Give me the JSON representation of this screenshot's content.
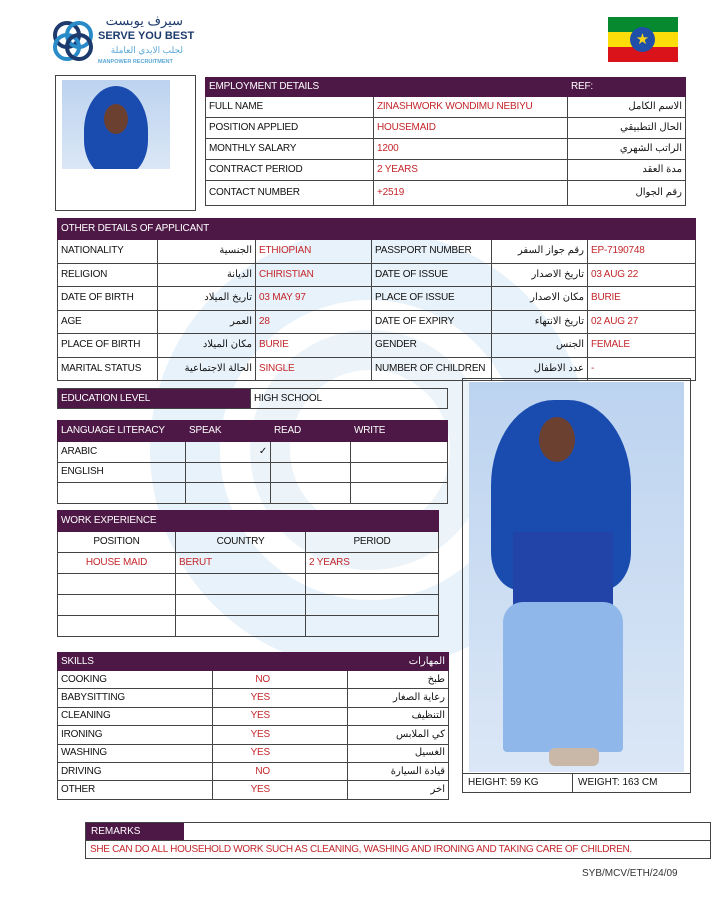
{
  "header": {
    "logo_arabic": "سيرف يوبست",
    "logo_name": "SERVE YOU BEST",
    "logo_arabic_sub": "لجلب الايدي العاملة",
    "logo_sub": "MANPOWER RECRUITMENT",
    "flag_colors": [
      "#078930",
      "#fcdd09",
      "#da121a"
    ],
    "flag_icon": "star-emblem-icon"
  },
  "employment": {
    "title": "EMPLOYMENT DETAILS",
    "ref_label": "REF:",
    "rows": [
      {
        "label": "FULL NAME",
        "value": "ZINASHWORK WONDIMU NEBIYU",
        "arabic": "الاسم الكامل"
      },
      {
        "label": "POSITION APPLIED",
        "value": "HOUSEMAID",
        "arabic": "الحال التطبيقي"
      },
      {
        "label": "MONTHLY SALARY",
        "value": "1200",
        "arabic": "الراتب الشهري"
      },
      {
        "label": "CONTRACT PERIOD",
        "value": "2 YEARS",
        "arabic": "مدة العقد"
      },
      {
        "label": "CONTACT NUMBER",
        "value": "+2519",
        "arabic": "رقم الجوال"
      }
    ]
  },
  "other": {
    "title": "OTHER DETAILS OF APPLICANT",
    "rows": [
      {
        "l1": "NATIONALITY",
        "a1": "الجنسية",
        "v1": "ETHIOPIAN",
        "l2": "PASSPORT NUMBER",
        "a2": "رقم جواز السفر",
        "v2": "EP-7190748"
      },
      {
        "l1": "RELIGION",
        "a1": "الديانة",
        "v1": "CHIRISTIAN",
        "l2": "DATE OF ISSUE",
        "a2": "تاريخ الاصدار",
        "v2": "03 AUG 22"
      },
      {
        "l1": "DATE OF BIRTH",
        "a1": "تاريخ الميلاد",
        "v1": "03 MAY 97",
        "l2": "PLACE OF ISSUE",
        "a2": "مكان الاصدار",
        "v2": "BURIE"
      },
      {
        "l1": "AGE",
        "a1": "العمر",
        "v1": "28",
        "l2": "DATE OF EXPIRY",
        "a2": "تاريخ الانتهاء",
        "v2": "02  AUG  27"
      },
      {
        "l1": "PLACE OF BIRTH",
        "a1": "مكان الميلاد",
        "v1": "BURIE",
        "l2": "GENDER",
        "a2": "الجنس",
        "v2": "FEMALE"
      },
      {
        "l1": "MARITAL STATUS",
        "a1": "الحالة الاجتماعية",
        "v1": "SINGLE",
        "l2": "NUMBER OF CHILDREN",
        "a2": "عدد الاطفال",
        "v2": "-"
      }
    ]
  },
  "education": {
    "label": "EDUCATION LEVEL",
    "value": "HIGH   SCHOOL"
  },
  "language": {
    "headers": [
      "LANGUAGE LITERACY",
      "SPEAK",
      "READ",
      "WRITE"
    ],
    "rows": [
      {
        "lang": "ARABIC",
        "speak": "✓",
        "read": "",
        "write": ""
      },
      {
        "lang": "ENGLISH",
        "speak": "",
        "read": "",
        "write": ""
      },
      {
        "lang": "",
        "speak": "",
        "read": "",
        "write": ""
      }
    ]
  },
  "work": {
    "title": "WORK EXPERIENCE",
    "headers": [
      "POSITION",
      "COUNTRY",
      "PERIOD"
    ],
    "rows": [
      {
        "position": "HOUSE MAID",
        "country": "BERUT",
        "period": "2 YEARS"
      },
      {
        "position": "",
        "country": "",
        "period": ""
      },
      {
        "position": "",
        "country": "",
        "period": ""
      },
      {
        "position": "",
        "country": "",
        "period": ""
      }
    ]
  },
  "skills": {
    "title": "SKILLS",
    "title_arabic": "المهارات",
    "rows": [
      {
        "skill": "COOKING",
        "value": "NO",
        "arabic": "طبخ"
      },
      {
        "skill": "BABYSITTING",
        "value": "YES",
        "arabic": "رعاية الصغار"
      },
      {
        "skill": "CLEANING",
        "value": "YES",
        "arabic": "التنظيف"
      },
      {
        "skill": "IRONING",
        "value": "YES",
        "arabic": "كي الملابس"
      },
      {
        "skill": "WASHING",
        "value": "YES",
        "arabic": "الغسيل"
      },
      {
        "skill": "DRIVING",
        "value": "NO",
        "arabic": "قيادة السيارة"
      },
      {
        "skill": "OTHER",
        "value": "YES",
        "arabic": "اخر"
      }
    ]
  },
  "measurements": {
    "height": "HEIGHT: 59 KG",
    "weight": "WEIGHT: 163 CM"
  },
  "remarks": {
    "title": "REMARKS",
    "text": "SHE CAN DO ALL HOUSEHOLD WORK SUCH AS CLEANING, WASHING AND IRONING AND TAKING CARE OF CHILDREN."
  },
  "footer": {
    "ref_code": "SYB/MCV/ETH/24/09"
  }
}
